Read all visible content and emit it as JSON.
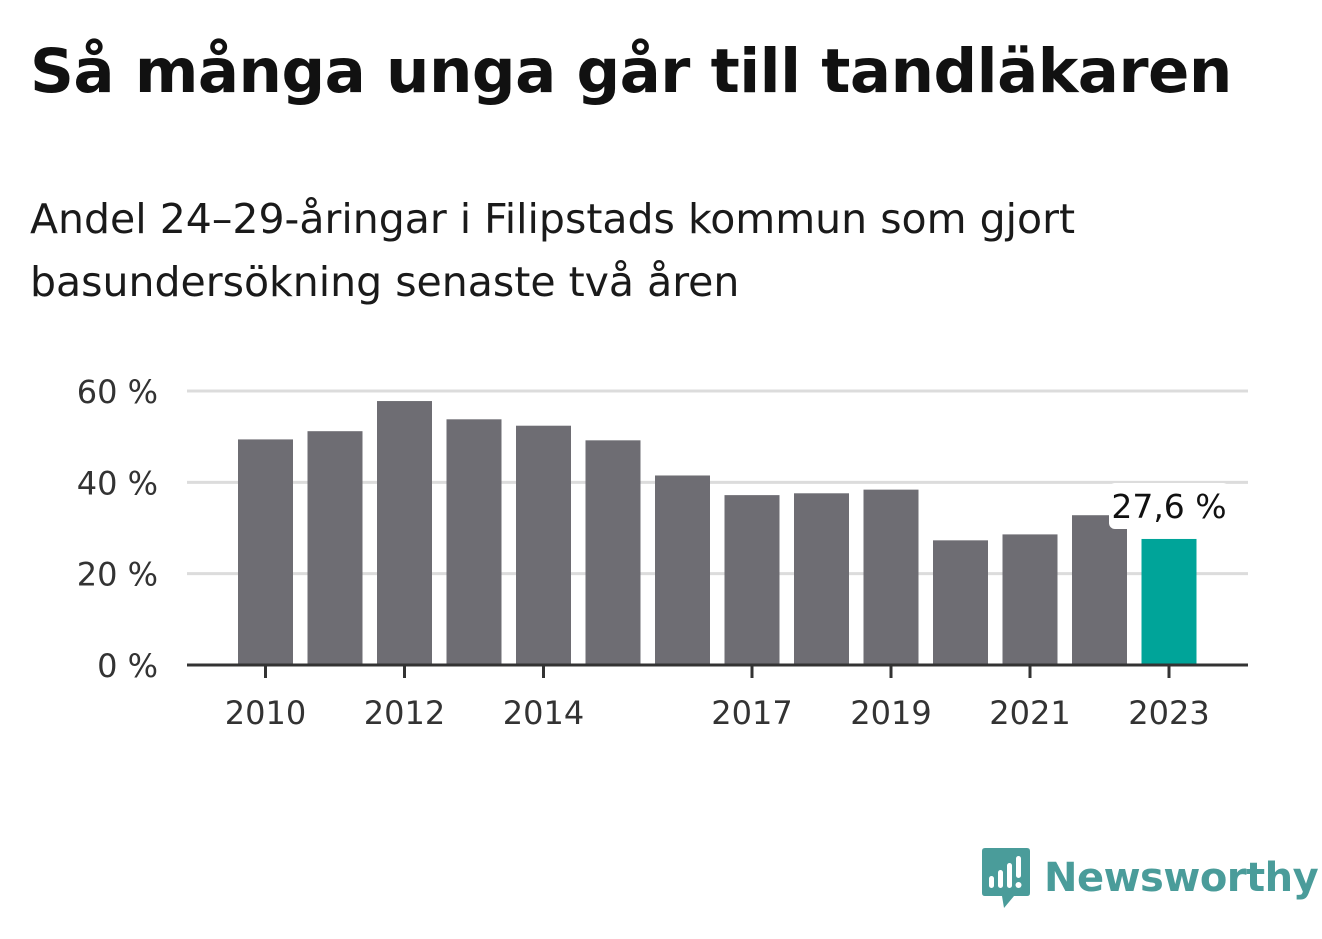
{
  "title": "Så många unga går till tandläkaren",
  "subtitle": "Andel 24–29-åringar i Filipstads kommun som gjort basundersökning senaste två åren",
  "brand": {
    "name": "Newsworthy",
    "color": "#4a9c9a",
    "icon": "speech-bubble-bar-chart-icon"
  },
  "colors": {
    "bar": "#6e6d73",
    "highlight": "#00a499",
    "grid": "#dcdcdc",
    "axis": "#333333",
    "text": "#333333"
  },
  "chart_data": {
    "type": "bar",
    "categories": [
      "2010",
      "2011",
      "2012",
      "2013",
      "2014",
      "2015",
      "2016",
      "2017",
      "2018",
      "2019",
      "2020",
      "2021",
      "2022",
      "2023"
    ],
    "values": [
      49.4,
      51.2,
      57.8,
      53.8,
      52.4,
      49.2,
      41.5,
      37.2,
      37.6,
      38.4,
      27.3,
      28.6,
      32.8,
      27.6
    ],
    "x_tick_labels": [
      "2010",
      "",
      "2012",
      "",
      "2014",
      "",
      "",
      "2017",
      "",
      "2019",
      "",
      "2021",
      "",
      "2023"
    ],
    "y_ticks": [
      {
        "value": 0,
        "label": "0 %"
      },
      {
        "value": 20,
        "label": "20 %"
      },
      {
        "value": 40,
        "label": "40 %"
      },
      {
        "value": 60,
        "label": "60 %"
      }
    ],
    "ylim": [
      0,
      60
    ],
    "grid": true,
    "highlight_index": 13,
    "annotation": {
      "index": 13,
      "label": "27,6 %"
    },
    "xlabel": "",
    "ylabel": ""
  }
}
